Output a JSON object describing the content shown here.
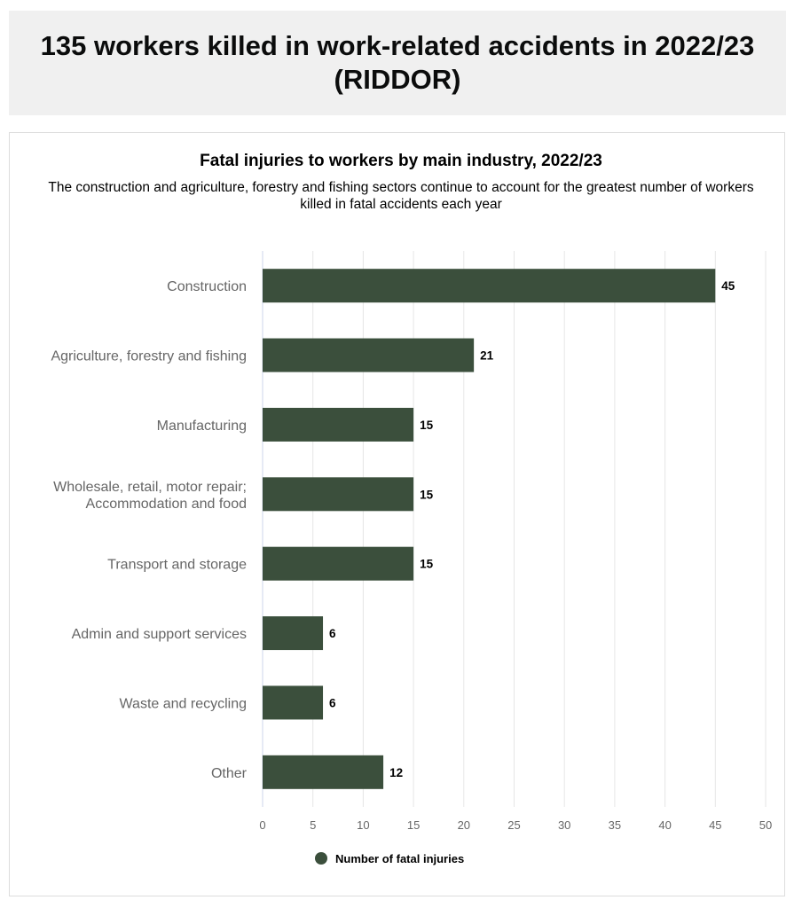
{
  "header": {
    "title": "135 workers killed in work-related accidents in 2022/23 (RIDDOR)"
  },
  "chart_data": {
    "type": "bar",
    "orientation": "horizontal",
    "title": "Fatal injuries to workers by main industry, 2022/23",
    "subtitle": "The construction and agriculture, forestry and fishing sectors continue to account for the greatest number of workers killed in fatal accidents each year",
    "categories": [
      "Construction",
      "Agriculture, forestry and fishing",
      "Manufacturing",
      "Wholesale, retail, motor repair;|Accommodation and food",
      "Transport and storage",
      "Admin and support services",
      "Waste and recycling",
      "Other"
    ],
    "series": [
      {
        "name": "Number of fatal injuries",
        "values": [
          45,
          21,
          15,
          15,
          15,
          6,
          6,
          12
        ],
        "color": "#3b4f3c"
      }
    ],
    "xlim": [
      0,
      50
    ],
    "xticks": [
      0,
      5,
      10,
      15,
      20,
      25,
      30,
      35,
      40,
      45,
      50
    ],
    "grid": true,
    "data_labels": true,
    "legend": "bottom"
  }
}
